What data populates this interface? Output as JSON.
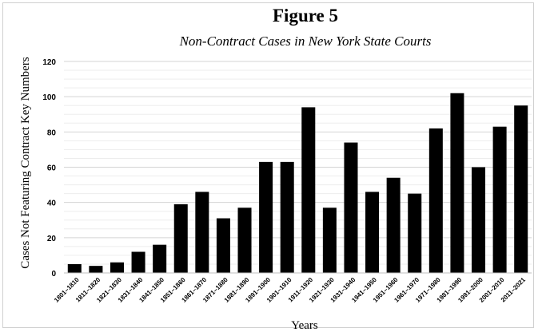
{
  "chart_data": {
    "type": "bar",
    "title": "Figure 5",
    "subtitle": "Non-Contract Cases in New York State Courts",
    "xlabel": "Years",
    "ylabel": "Cases Not Featuring Contract Key Numbers",
    "ylim": [
      0,
      120
    ],
    "yticks": [
      0,
      20,
      40,
      60,
      80,
      100,
      120
    ],
    "grid": true,
    "bar_color": "#000000",
    "categories": [
      "1801–1810",
      "1811–1820",
      "1821–1830",
      "1831–1840",
      "1841–1850",
      "1851–1860",
      "1861–1870",
      "1871–1880",
      "1881–1890",
      "1891–1900",
      "1901–1910",
      "1911–1920",
      "1921–1930",
      "1931–1940",
      "1941–1950",
      "1951–1960",
      "1961–1970",
      "1971–1980",
      "1981–1990",
      "1991–2000",
      "2001–2010",
      "2011–2021"
    ],
    "values": [
      5,
      4,
      6,
      12,
      16,
      39,
      46,
      31,
      37,
      63,
      63,
      94,
      37,
      74,
      46,
      54,
      45,
      82,
      102,
      60,
      83,
      95
    ]
  }
}
